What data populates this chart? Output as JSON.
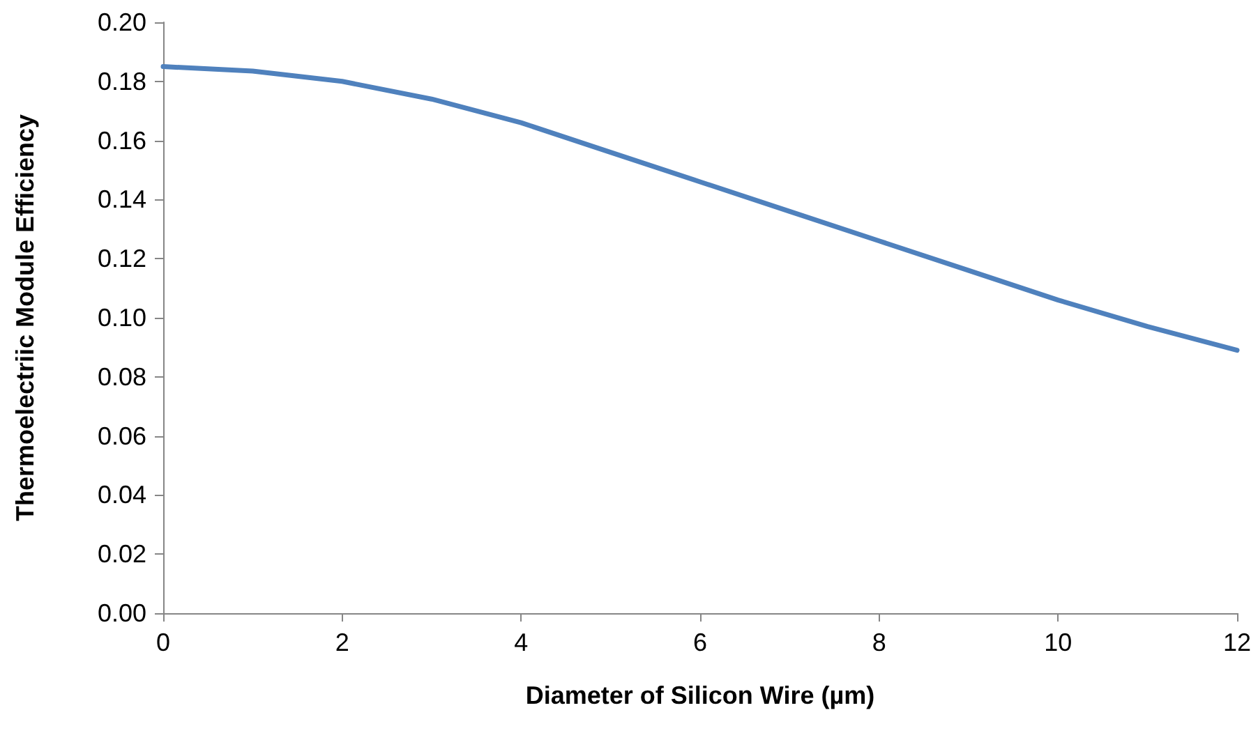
{
  "chart_data": {
    "type": "line",
    "xlabel": "Diameter of Silicon Wire (µm)",
    "ylabel": "Thermoelectriic Module Efficiency",
    "x": [
      0,
      1,
      2,
      3,
      4,
      5,
      6,
      7,
      8,
      9,
      10,
      11,
      12
    ],
    "series": [
      {
        "color": "#4f81bd",
        "values": [
          0.185,
          0.1835,
          0.18,
          0.174,
          0.166,
          0.156,
          0.146,
          0.136,
          0.126,
          0.116,
          0.106,
          0.097,
          0.089
        ]
      }
    ],
    "xlim": [
      0,
      12
    ],
    "xticks": [
      0,
      2,
      4,
      6,
      8,
      10,
      12
    ],
    "ylim": [
      0,
      0.2
    ],
    "yticks": [
      {
        "value": 0,
        "label": "0.00"
      },
      {
        "value": 0.02,
        "label": "0.02"
      },
      {
        "value": 0.04,
        "label": "0.04"
      },
      {
        "value": 0.06,
        "label": "0.06"
      },
      {
        "value": 0.08,
        "label": "0.08"
      },
      {
        "value": 0.1,
        "label": "0.10"
      },
      {
        "value": 0.12,
        "label": "0.12"
      },
      {
        "value": 0.14,
        "label": "0.14"
      },
      {
        "value": 0.16,
        "label": "0.16"
      },
      {
        "value": 0.18,
        "label": "0.18"
      },
      {
        "value": 0.2,
        "label": "0.20"
      }
    ],
    "grid": false,
    "marker": "none",
    "line_style": "solid"
  }
}
